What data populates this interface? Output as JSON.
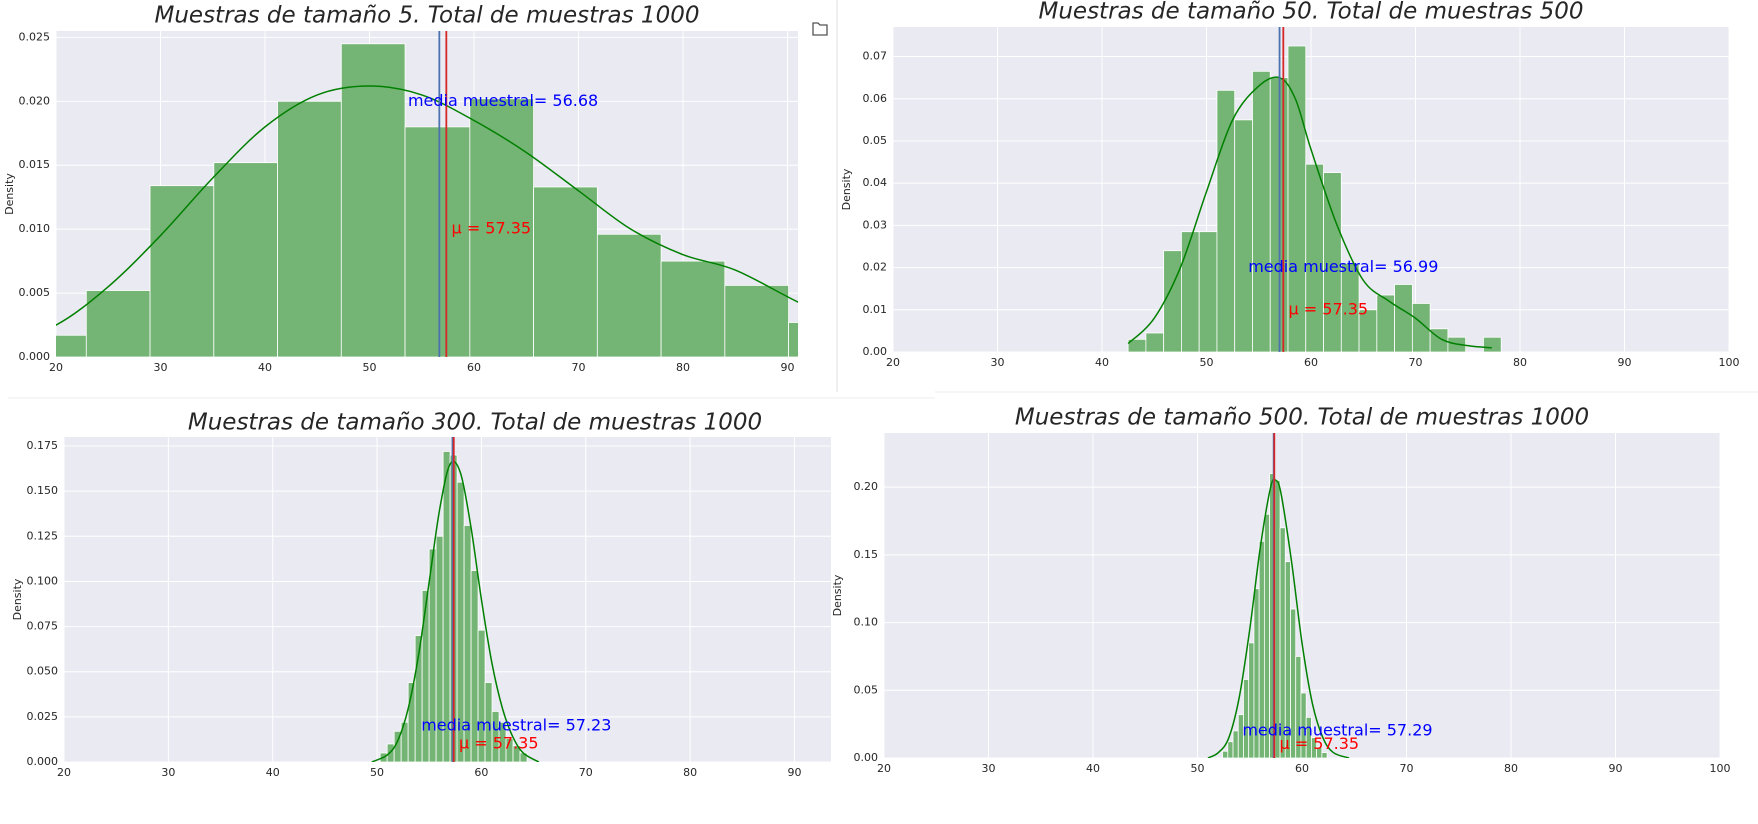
{
  "chart_data": [
    {
      "type": "histogram",
      "title": "Muestras de tamaño 5. Total de muestras 1000",
      "ylabel": "Density",
      "bins": [
        16.8,
        22.9,
        29.0,
        35.1,
        41.2,
        47.3,
        53.4,
        59.6,
        65.7,
        71.8,
        77.9,
        84.0,
        90.1,
        96.2
      ],
      "values": [
        0.0017,
        0.0052,
        0.0134,
        0.0152,
        0.02,
        0.0245,
        0.018,
        0.0202,
        0.0133,
        0.0096,
        0.0075,
        0.0056,
        0.0027
      ],
      "color": "#74b474",
      "xlim": [
        20,
        91
      ],
      "ylim": [
        0,
        0.0255
      ],
      "xticks": [
        20,
        30,
        40,
        50,
        60,
        70,
        80,
        90
      ],
      "yticks": [
        {
          "value": 0,
          "label": "0.000"
        },
        {
          "value": 0.005,
          "label": "0.005"
        },
        {
          "value": 0.01,
          "label": "0.010"
        },
        {
          "value": 0.015,
          "label": "0.015"
        },
        {
          "value": 0.02,
          "label": "0.020"
        },
        {
          "value": 0.025,
          "label": "0.025"
        }
      ],
      "grid": true,
      "kde": {
        "color": "#008000",
        "x": [
          15,
          20,
          25,
          30,
          35,
          40,
          45,
          50,
          55,
          60,
          65,
          70,
          75,
          80,
          85,
          91,
          96
        ],
        "y": [
          0.0012,
          0.0025,
          0.0055,
          0.0095,
          0.014,
          0.018,
          0.0205,
          0.0212,
          0.0205,
          0.0185,
          0.016,
          0.013,
          0.01,
          0.008,
          0.0068,
          0.0043,
          0.0025
        ]
      },
      "vlines": [
        {
          "value": 56.68,
          "color": "#4c72b0"
        },
        {
          "value": 57.35,
          "color": "#d62728"
        }
      ],
      "annotations": [
        {
          "text": "media muestral= 56.68",
          "x": 53.68,
          "y": 0.02,
          "color": "#0000ff"
        },
        {
          "text": "μ = 57.35",
          "x": 57.85,
          "y": 0.01,
          "color": "#ff0000"
        }
      ]
    },
    {
      "type": "histogram",
      "title": "Muestras de tamaño 50. Total de muestras 500",
      "ylabel": "Density",
      "bins": [
        42.5,
        44.2,
        45.9,
        47.6,
        49.3,
        51.0,
        52.7,
        54.4,
        56.1,
        57.8,
        59.5,
        61.2,
        62.9,
        64.6,
        66.3,
        68.0,
        69.7,
        71.4,
        73.1,
        74.8,
        76.5,
        78.2
      ],
      "values": [
        0.003,
        0.0045,
        0.024,
        0.0285,
        0.0285,
        0.062,
        0.055,
        0.0665,
        0.065,
        0.0725,
        0.0445,
        0.0425,
        0.021,
        0.01,
        0.0135,
        0.016,
        0.0115,
        0.0055,
        0.0035,
        0,
        0.0035
      ],
      "color": "#74b474",
      "xlim": [
        20,
        100
      ],
      "ylim": [
        0,
        0.077
      ],
      "xticks": [
        20,
        30,
        40,
        50,
        60,
        70,
        80,
        90,
        100
      ],
      "yticks": [
        {
          "value": 0,
          "label": "0.00"
        },
        {
          "value": 0.01,
          "label": "0.01"
        },
        {
          "value": 0.02,
          "label": "0.02"
        },
        {
          "value": 0.03,
          "label": "0.03"
        },
        {
          "value": 0.04,
          "label": "0.04"
        },
        {
          "value": 0.05,
          "label": "0.05"
        },
        {
          "value": 0.06,
          "label": "0.06"
        },
        {
          "value": 0.07,
          "label": "0.07"
        }
      ],
      "grid": true,
      "kde": {
        "color": "#008000",
        "x": [
          42.5,
          45,
          47.5,
          50,
          52.5,
          55,
          57,
          58.5,
          60,
          62.5,
          65,
          67.5,
          70,
          72.5,
          75,
          77.3
        ],
        "y": [
          0.002,
          0.008,
          0.02,
          0.038,
          0.055,
          0.063,
          0.065,
          0.06,
          0.048,
          0.03,
          0.017,
          0.012,
          0.008,
          0.003,
          0.0015,
          0.001
        ]
      },
      "vlines": [
        {
          "value": 56.99,
          "color": "#4c72b0"
        },
        {
          "value": 57.35,
          "color": "#d62728"
        }
      ],
      "annotations": [
        {
          "text": "media muestral= 56.99",
          "x": 53.99,
          "y": 0.02,
          "color": "#0000ff"
        },
        {
          "text": "μ = 57.35",
          "x": 57.85,
          "y": 0.01,
          "color": "#ff0000"
        }
      ]
    },
    {
      "type": "histogram",
      "title": "Muestras de tamaño 300. Total de muestras 1000",
      "ylabel": "Density",
      "bins": [
        50.3,
        50.97,
        51.64,
        52.31,
        52.98,
        53.65,
        54.32,
        54.99,
        55.66,
        56.33,
        57.0,
        57.67,
        58.34,
        59.01,
        59.68,
        60.35,
        61.02,
        61.69,
        62.36,
        63.03,
        63.7,
        64.37
      ],
      "values": [
        0.005,
        0.01,
        0.017,
        0.022,
        0.044,
        0.07,
        0.095,
        0.118,
        0.125,
        0.172,
        0.17,
        0.155,
        0.131,
        0.106,
        0.073,
        0.044,
        0.028,
        0.022,
        0.013,
        0.009,
        0.005
      ],
      "color": "#74b474",
      "xlim": [
        20,
        93.5
      ],
      "ylim": [
        0,
        0.18
      ],
      "xticks": [
        20,
        30,
        40,
        50,
        60,
        70,
        80,
        90
      ],
      "yticks": [
        {
          "value": 0,
          "label": "0.000"
        },
        {
          "value": 0.025,
          "label": "0.025"
        },
        {
          "value": 0.05,
          "label": "0.050"
        },
        {
          "value": 0.075,
          "label": "0.075"
        },
        {
          "value": 0.1,
          "label": "0.100"
        },
        {
          "value": 0.125,
          "label": "0.125"
        },
        {
          "value": 0.15,
          "label": "0.150"
        },
        {
          "value": 0.175,
          "label": "0.175"
        }
      ],
      "grid": true,
      "kde": {
        "color": "#008000",
        "x": [
          49.5,
          51,
          52,
          53,
          54,
          55,
          56,
          57,
          58,
          59,
          60,
          61,
          62,
          63,
          64,
          65.5
        ],
        "y": [
          0,
          0.004,
          0.012,
          0.03,
          0.06,
          0.1,
          0.14,
          0.165,
          0.16,
          0.13,
          0.09,
          0.055,
          0.03,
          0.014,
          0.005,
          0
        ]
      },
      "vlines": [
        {
          "value": 57.23,
          "color": "#4c72b0"
        },
        {
          "value": 57.35,
          "color": "#d62728"
        }
      ],
      "annotations": [
        {
          "text": "media muestral= 57.23",
          "x": 54.23,
          "y": 0.02,
          "color": "#0000ff"
        },
        {
          "text": "μ = 57.35",
          "x": 57.85,
          "y": 0.01,
          "color": "#ff0000"
        }
      ]
    },
    {
      "type": "histogram",
      "title": "Muestras de tamaño 500. Total de muestras 1000",
      "ylabel": "Density",
      "bins": [
        52.4,
        52.9,
        53.4,
        53.9,
        54.4,
        54.9,
        55.4,
        55.9,
        56.4,
        56.9,
        57.4,
        57.9,
        58.4,
        58.9,
        59.4,
        59.9,
        60.4,
        60.9,
        61.4,
        61.9,
        62.4
      ],
      "values": [
        0.005,
        0.012,
        0.02,
        0.032,
        0.058,
        0.085,
        0.125,
        0.16,
        0.18,
        0.21,
        0.205,
        0.17,
        0.145,
        0.11,
        0.075,
        0.048,
        0.03,
        0.015,
        0.008,
        0.004
      ],
      "color": "#74b474",
      "xlim": [
        20,
        100
      ],
      "ylim": [
        0,
        0.24
      ],
      "xticks": [
        20,
        30,
        40,
        50,
        60,
        70,
        80,
        90,
        100
      ],
      "yticks": [
        {
          "value": 0,
          "label": "0.00"
        },
        {
          "value": 0.05,
          "label": "0.05"
        },
        {
          "value": 0.1,
          "label": "0.10"
        },
        {
          "value": 0.15,
          "label": "0.15"
        },
        {
          "value": 0.2,
          "label": "0.20"
        }
      ],
      "grid": true,
      "kde": {
        "color": "#008000",
        "x": [
          51,
          52,
          53,
          54,
          55,
          56,
          57,
          57.5,
          58,
          59,
          60,
          61,
          62,
          63,
          64.5
        ],
        "y": [
          0,
          0.004,
          0.015,
          0.045,
          0.095,
          0.155,
          0.2,
          0.205,
          0.195,
          0.145,
          0.085,
          0.04,
          0.015,
          0.004,
          0
        ]
      },
      "vlines": [
        {
          "value": 57.29,
          "color": "#4c72b0"
        },
        {
          "value": 57.35,
          "color": "#d62728"
        }
      ],
      "annotations": [
        {
          "text": "media muestral= 57.29",
          "x": 54.29,
          "y": 0.02,
          "color": "#0000ff"
        },
        {
          "text": "μ = 57.35",
          "x": 57.85,
          "y": 0.01,
          "color": "#ff0000"
        }
      ]
    }
  ]
}
